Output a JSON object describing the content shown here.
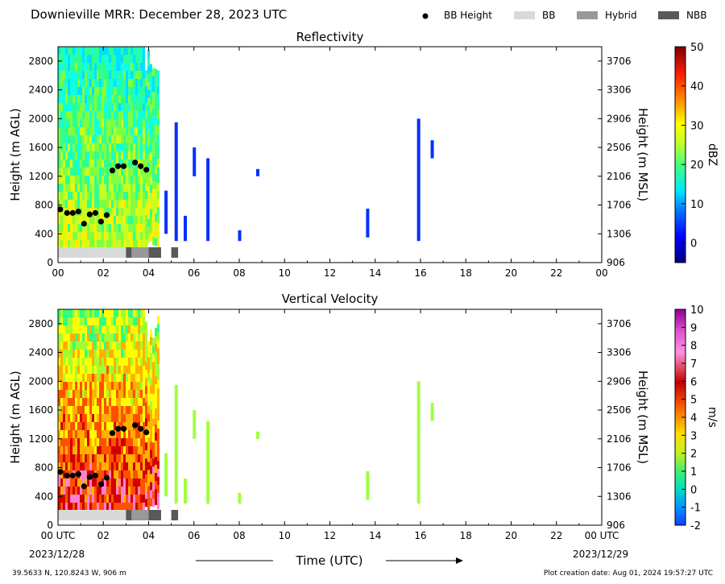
{
  "header": {
    "title": "Downieville MRR:  December 28, 2023 UTC",
    "legend": [
      {
        "label": "BB Height",
        "kind": "dot",
        "color": "#000000"
      },
      {
        "label": "BB",
        "kind": "box",
        "color": "#d9d9d9"
      },
      {
        "label": "Hybrid",
        "kind": "box",
        "color": "#999999"
      },
      {
        "label": "NBB",
        "kind": "box",
        "color": "#595959"
      }
    ]
  },
  "footer": {
    "location": "39.5633 N, 120.8243 W, 906 m",
    "creation": "Plot creation date: Aug 01, 2024 19:57:27 UTC",
    "time_label": "Time (UTC)",
    "start_date": "2023/12/28",
    "end_date": "2023/12/29"
  },
  "chart_data": [
    {
      "type": "heatmap",
      "title": "Reflectivity",
      "ylabel": "Height (m AGL)",
      "y2label": "Height (m MSL)",
      "x_ticks": [
        "00",
        "02",
        "04",
        "06",
        "08",
        "10",
        "12",
        "14",
        "16",
        "18",
        "20",
        "22",
        "00"
      ],
      "x_range_hours": [
        0,
        24
      ],
      "y_ticks": [
        0,
        400,
        800,
        1200,
        1600,
        2000,
        2400,
        2800
      ],
      "y_range": [
        0,
        3000
      ],
      "y2_ticks": [
        906,
        1306,
        1706,
        2106,
        2506,
        2906,
        3306,
        3706
      ],
      "colorbar": {
        "label": "dBZ",
        "min": -5,
        "max": 50,
        "ticks": [
          0,
          10,
          20,
          30,
          40,
          50
        ]
      },
      "bb_height_points": [
        [
          0.1,
          740
        ],
        [
          0.4,
          690
        ],
        [
          0.65,
          690
        ],
        [
          0.9,
          710
        ],
        [
          1.15,
          540
        ],
        [
          1.4,
          670
        ],
        [
          1.65,
          690
        ],
        [
          1.9,
          570
        ],
        [
          2.15,
          660
        ],
        [
          2.4,
          1280
        ],
        [
          2.65,
          1340
        ],
        [
          2.9,
          1340
        ],
        [
          3.4,
          1390
        ],
        [
          3.65,
          1340
        ],
        [
          3.9,
          1290
        ]
      ],
      "bb_class_segments": [
        {
          "start": 0.0,
          "end": 3.0,
          "class": "BB"
        },
        {
          "start": 3.0,
          "end": 3.25,
          "class": "NBB"
        },
        {
          "start": 3.25,
          "end": 4.0,
          "class": "Hybrid"
        },
        {
          "start": 4.0,
          "end": 4.55,
          "class": "NBB"
        },
        {
          "start": 5.0,
          "end": 5.3,
          "class": "NBB"
        }
      ]
    },
    {
      "type": "heatmap",
      "title": "Vertical Velocity",
      "ylabel": "Height (m AGL)",
      "y2label": "Height (m MSL)",
      "x_ticks": [
        "00 UTC",
        "02",
        "04",
        "06",
        "08",
        "10",
        "12",
        "14",
        "16",
        "18",
        "20",
        "22",
        "00 UTC"
      ],
      "x_range_hours": [
        0,
        24
      ],
      "y_ticks": [
        0,
        400,
        800,
        1200,
        1600,
        2000,
        2400,
        2800
      ],
      "y_range": [
        0,
        3000
      ],
      "y2_ticks": [
        906,
        1306,
        1706,
        2106,
        2506,
        2906,
        3306,
        3706
      ],
      "colorbar": {
        "label": "m/s",
        "min": -2,
        "max": 10,
        "ticks": [
          -2,
          -1,
          0,
          1,
          2,
          3,
          4,
          5,
          6,
          7,
          8,
          9,
          10
        ]
      },
      "bb_height_points": [
        [
          0.1,
          740
        ],
        [
          0.4,
          690
        ],
        [
          0.65,
          690
        ],
        [
          0.9,
          710
        ],
        [
          1.15,
          540
        ],
        [
          1.4,
          670
        ],
        [
          1.65,
          690
        ],
        [
          1.9,
          570
        ],
        [
          2.15,
          660
        ],
        [
          2.4,
          1280
        ],
        [
          2.65,
          1340
        ],
        [
          2.9,
          1340
        ],
        [
          3.4,
          1390
        ],
        [
          3.65,
          1340
        ],
        [
          3.9,
          1290
        ]
      ],
      "bb_class_segments": [
        {
          "start": 0.0,
          "end": 3.0,
          "class": "BB"
        },
        {
          "start": 3.0,
          "end": 3.25,
          "class": "NBB"
        },
        {
          "start": 3.25,
          "end": 4.0,
          "class": "Hybrid"
        },
        {
          "start": 4.0,
          "end": 4.55,
          "class": "NBB"
        },
        {
          "start": 5.0,
          "end": 5.3,
          "class": "NBB"
        }
      ]
    }
  ]
}
